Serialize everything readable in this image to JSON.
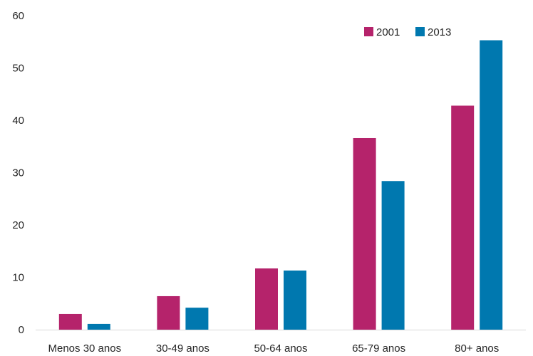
{
  "chart_data": {
    "type": "bar",
    "categories": [
      "Menos 30 anos",
      "30-49 anos",
      "50-64 anos",
      "65-79 anos",
      "80+ anos"
    ],
    "series": [
      {
        "name": "2001",
        "color": "#B5236B",
        "values": [
          3.0,
          6.4,
          11.7,
          36.6,
          42.8
        ]
      },
      {
        "name": "2013",
        "color": "#0078AF",
        "values": [
          1.1,
          4.2,
          11.3,
          28.4,
          55.3
        ]
      }
    ],
    "yticks": [
      "0",
      "10",
      "20",
      "30",
      "40",
      "50",
      "60"
    ],
    "ylim": [
      0,
      60
    ],
    "grid": false,
    "legend_position": "top-right"
  }
}
